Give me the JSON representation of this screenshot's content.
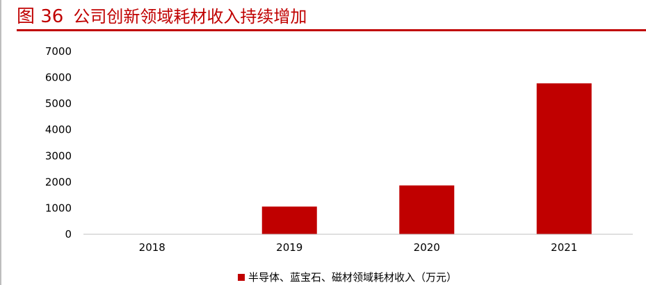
{
  "header": {
    "figure_number": "图 36",
    "title": "公司创新领域耗材收入持续增加"
  },
  "colors": {
    "accent": "#c00000",
    "bar": "#c00000"
  },
  "chart_data": {
    "type": "bar",
    "categories": [
      "2018",
      "2019",
      "2020",
      "2021"
    ],
    "series": [
      {
        "name": "半导体、蓝宝石、磁材领域耗材收入（万元）",
        "values": [
          0,
          1060,
          1870,
          5780
        ]
      }
    ],
    "ylim": [
      0,
      7000
    ],
    "yticks": [
      0,
      1000,
      2000,
      3000,
      4000,
      5000,
      6000,
      7000
    ],
    "grid": false,
    "legend_position": "bottom"
  }
}
